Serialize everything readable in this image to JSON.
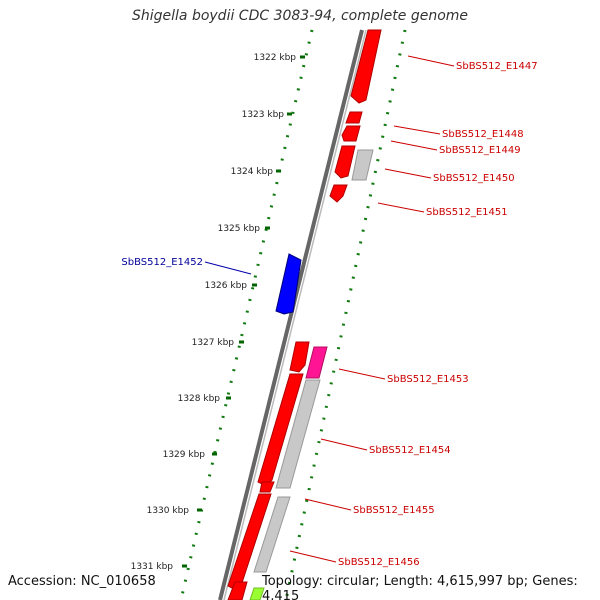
{
  "title": "Shigella boydii CDC 3083-94, complete genome",
  "footer": {
    "accession": "Accession: NC_010658",
    "summary": "Topology: circular; Length: 4,615,997 bp; Genes: 4,415"
  },
  "colors": {
    "forward": "#ff0000",
    "reverse": "#0000ff",
    "grey": "#c0c0c0",
    "magenta": "#ff1493",
    "lime": "#99ff33",
    "tick": "#006400",
    "label_red": "#cc0000",
    "label_blue": "#000099"
  },
  "ticks": [
    "1322 kbp",
    "1323 kbp",
    "1324 kbp",
    "1325 kbp",
    "1326 kbp",
    "1327 kbp",
    "1328 kbp",
    "1329 kbp",
    "1330 kbp",
    "1331 kbp"
  ],
  "gene_labels": [
    {
      "name": "SbBS512_E1447",
      "side": "right",
      "strand": "forward"
    },
    {
      "name": "SbBS512_E1448",
      "side": "right",
      "strand": "forward"
    },
    {
      "name": "SbBS512_E1449",
      "side": "right",
      "strand": "forward"
    },
    {
      "name": "SbBS512_E1450",
      "side": "right",
      "strand": "forward"
    },
    {
      "name": "SbBS512_E1451",
      "side": "right",
      "strand": "forward"
    },
    {
      "name": "SbBS512_E1452",
      "side": "left",
      "strand": "reverse"
    },
    {
      "name": "SbBS512_E1453",
      "side": "right",
      "strand": "forward"
    },
    {
      "name": "SbBS512_E1454",
      "side": "right",
      "strand": "forward"
    },
    {
      "name": "SbBS512_E1455",
      "side": "right",
      "strand": "forward"
    },
    {
      "name": "SbBS512_E1456",
      "side": "right",
      "strand": "forward"
    }
  ]
}
